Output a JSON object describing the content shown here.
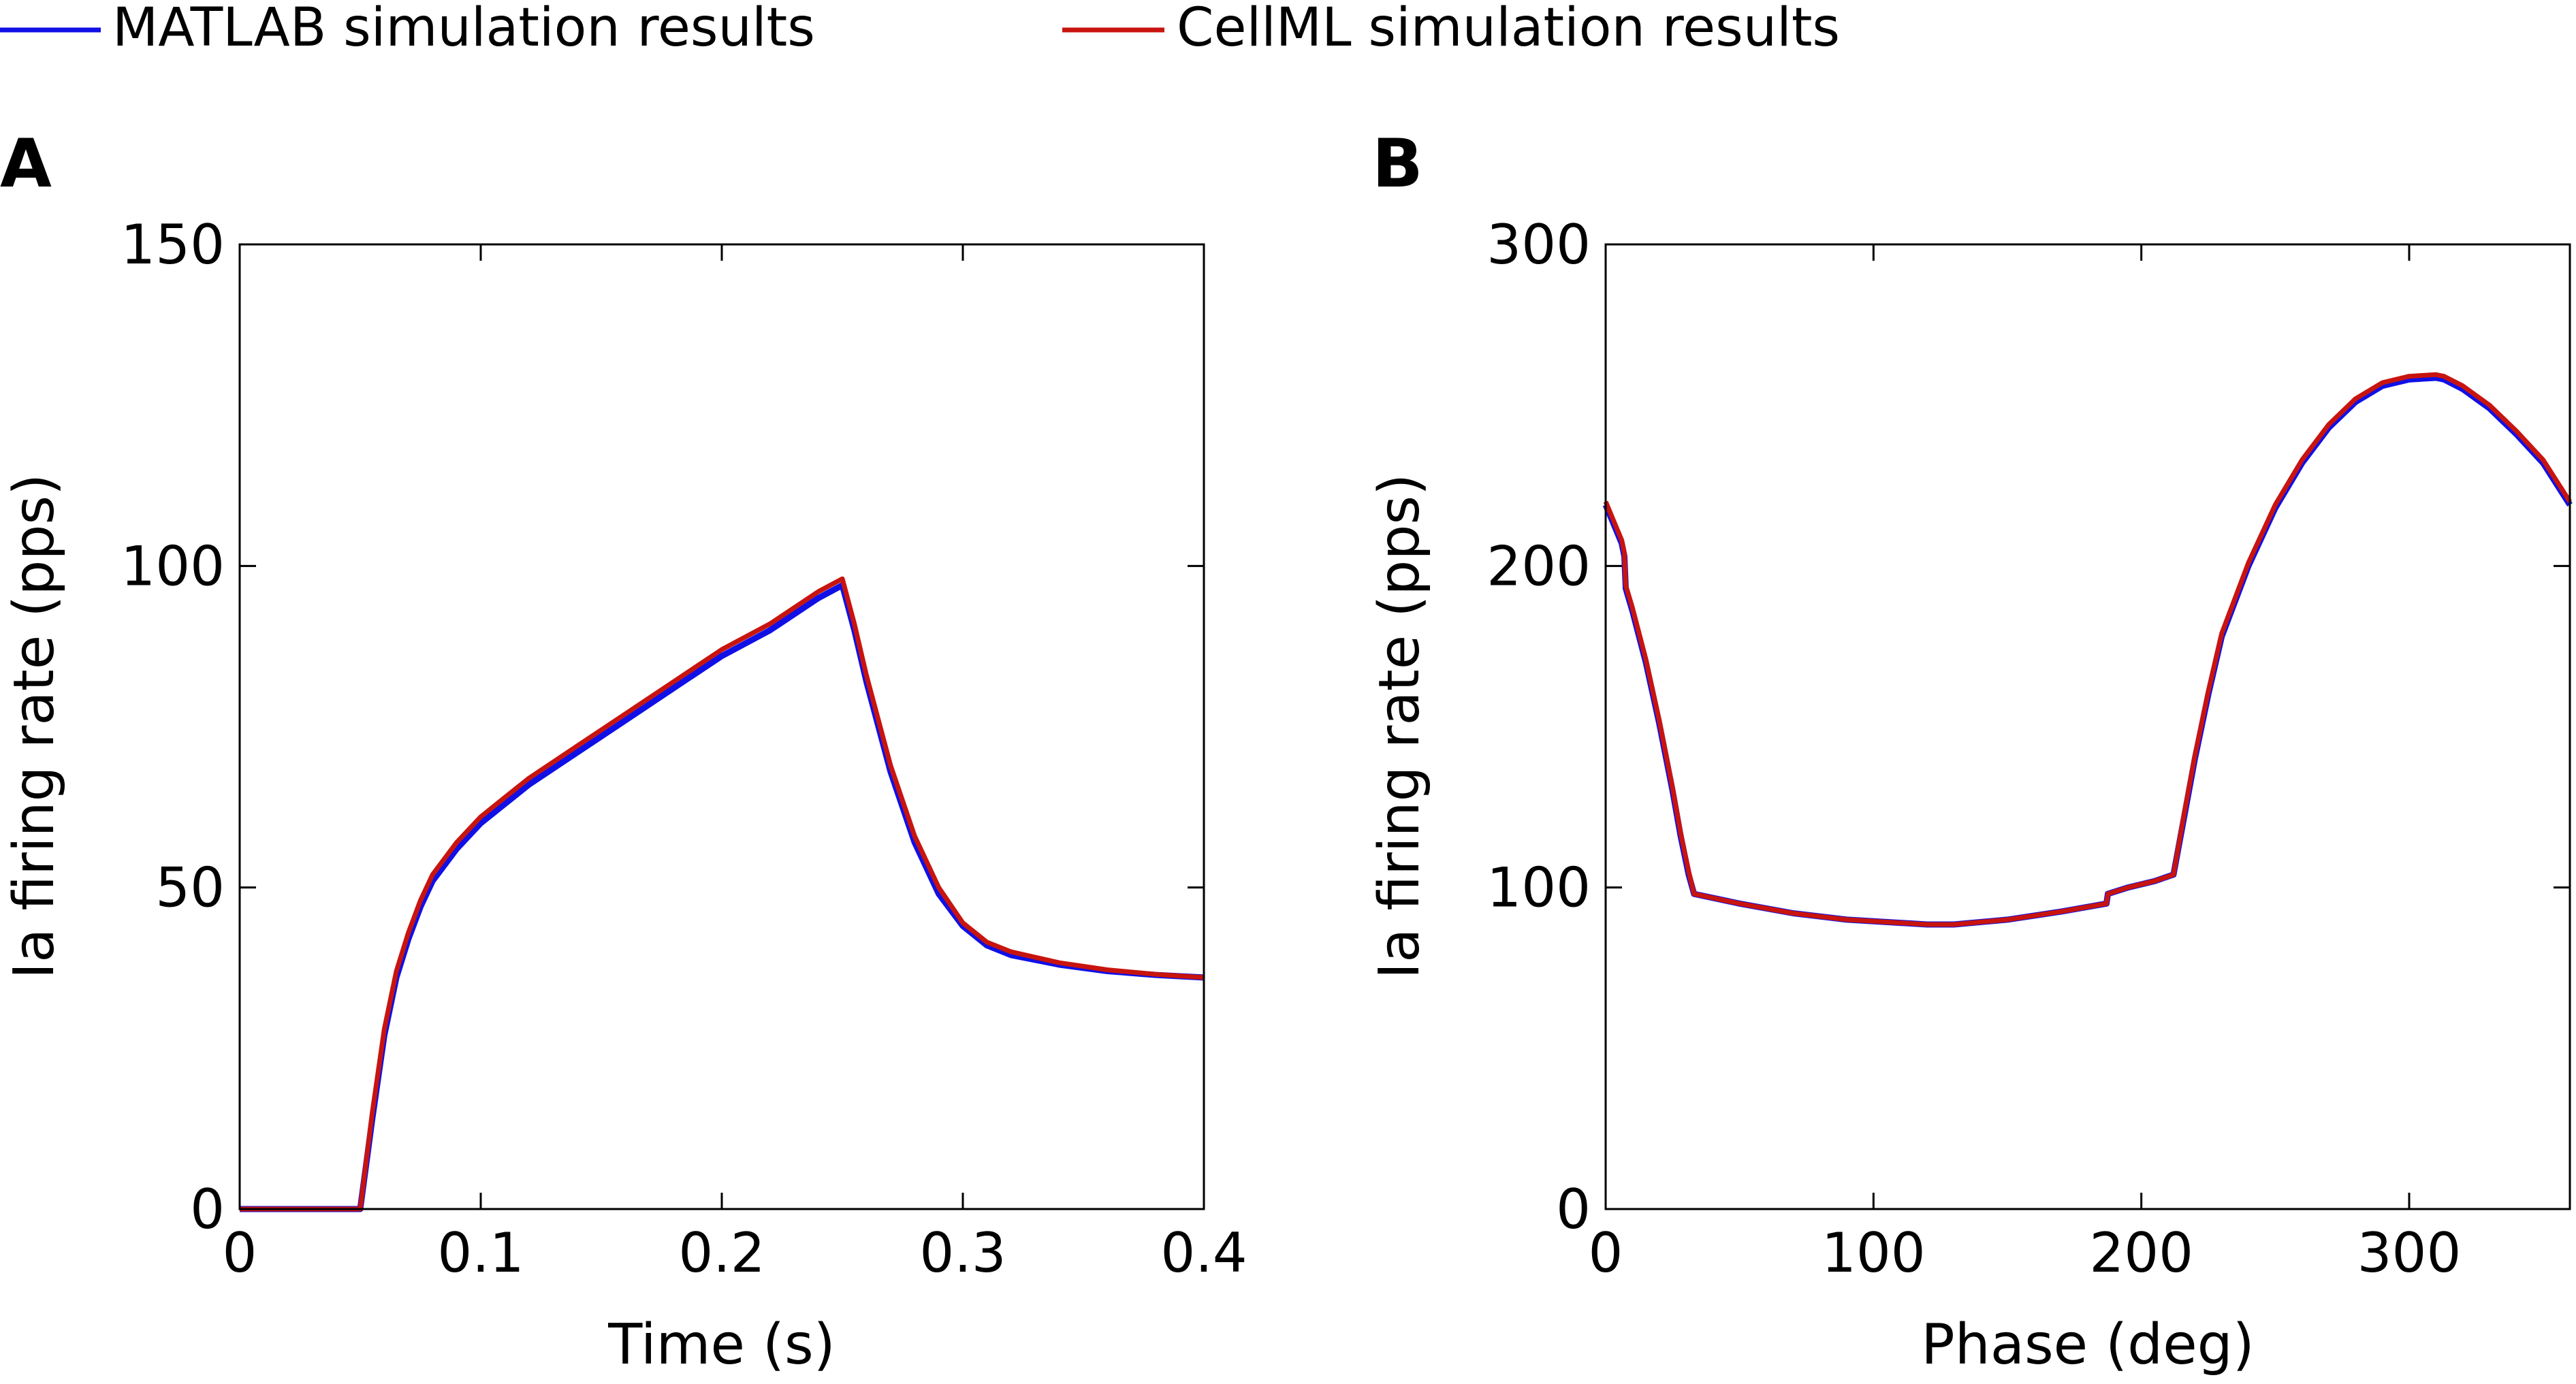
{
  "legend": {
    "items": [
      {
        "label": "MATLAB simulation results",
        "color": "#1010e6"
      },
      {
        "label": "CellML simulation results",
        "color": "#c8140f"
      }
    ]
  },
  "chart_data": [
    {
      "type": "line",
      "panel_label": "A",
      "xlabel": "Time (s)",
      "ylabel": "Ia firing rate (pps)",
      "xlim": [
        0,
        0.4
      ],
      "ylim": [
        0,
        150
      ],
      "xticks": [
        0,
        0.1,
        0.2,
        0.3,
        0.4
      ],
      "xtick_labels": [
        "0",
        "0.1",
        "0.2",
        "0.3",
        "0.4"
      ],
      "yticks": [
        0,
        50,
        100,
        150
      ],
      "ytick_labels": [
        "0",
        "50",
        "100",
        "150"
      ],
      "grid": false,
      "series": [
        {
          "name": "MATLAB simulation results",
          "x": [
            0,
            0.05,
            0.055,
            0.06,
            0.065,
            0.07,
            0.075,
            0.08,
            0.09,
            0.1,
            0.11,
            0.12,
            0.14,
            0.16,
            0.18,
            0.2,
            0.22,
            0.24,
            0.25,
            0.255,
            0.26,
            0.27,
            0.28,
            0.29,
            0.3,
            0.31,
            0.32,
            0.34,
            0.36,
            0.38,
            0.4
          ],
          "y": [
            0,
            0,
            14,
            27,
            36,
            42,
            47,
            51,
            56,
            60,
            63,
            66,
            71,
            76,
            81,
            86,
            90,
            95,
            97,
            90,
            82,
            68,
            57,
            49,
            44,
            41,
            39.5,
            38,
            37,
            36.4,
            36
          ]
        },
        {
          "name": "CellML simulation results",
          "x": [
            0,
            0.05,
            0.055,
            0.06,
            0.065,
            0.07,
            0.075,
            0.08,
            0.09,
            0.1,
            0.11,
            0.12,
            0.14,
            0.16,
            0.18,
            0.2,
            0.22,
            0.24,
            0.25,
            0.255,
            0.26,
            0.27,
            0.28,
            0.29,
            0.3,
            0.31,
            0.32,
            0.34,
            0.36,
            0.38,
            0.4
          ],
          "y": [
            0,
            0,
            15,
            28,
            37,
            43,
            48,
            52,
            57,
            61,
            64,
            67,
            72,
            77,
            82,
            87,
            91,
            96,
            98,
            91,
            83,
            69,
            58,
            50,
            44.5,
            41.5,
            40,
            38.3,
            37.2,
            36.5,
            36
          ]
        }
      ]
    },
    {
      "type": "line",
      "panel_label": "B",
      "xlabel": "Phase (deg)",
      "ylabel": "Ia firing rate (pps)",
      "xlim": [
        0,
        360
      ],
      "ylim": [
        0,
        300
      ],
      "xticks": [
        0,
        100,
        200,
        300
      ],
      "xtick_labels": [
        "0",
        "100",
        "200",
        "300"
      ],
      "yticks": [
        0,
        100,
        200,
        300
      ],
      "ytick_labels": [
        "0",
        "100",
        "200",
        "300"
      ],
      "grid": false,
      "series": [
        {
          "name": "MATLAB simulation results",
          "x": [
            0,
            3,
            6,
            7,
            7.5,
            10,
            15,
            20,
            25,
            28,
            31,
            33,
            50,
            70,
            90,
            110,
            120,
            130,
            150,
            170,
            187,
            187.5,
            195,
            205,
            212,
            216,
            220,
            225,
            230,
            240,
            250,
            260,
            270,
            280,
            290,
            300,
            310,
            313,
            320,
            330,
            340,
            350,
            360
          ],
          "y": [
            219,
            213,
            207,
            203,
            193,
            186,
            170,
            151,
            130,
            116,
            104,
            98,
            95,
            92,
            90,
            89,
            88.5,
            88.5,
            90,
            92.5,
            95,
            98,
            100,
            102,
            104,
            122,
            140,
            160,
            178,
            200,
            218,
            232,
            243,
            251,
            256,
            258,
            258.5,
            258,
            255,
            249,
            241,
            232,
            219
          ]
        },
        {
          "name": "CellML simulation results",
          "x": [
            0,
            3,
            6,
            7,
            7.5,
            10,
            15,
            20,
            25,
            28,
            31,
            33,
            50,
            70,
            90,
            110,
            120,
            130,
            150,
            170,
            187,
            187.5,
            195,
            205,
            212,
            216,
            220,
            225,
            230,
            240,
            250,
            260,
            270,
            280,
            290,
            300,
            310,
            313,
            320,
            330,
            340,
            350,
            360
          ],
          "y": [
            220,
            214,
            208,
            204,
            194,
            187,
            171,
            152,
            131,
            117,
            105,
            98,
            95,
            92,
            90,
            89,
            88.5,
            88.5,
            90,
            92.5,
            95,
            98,
            100,
            102,
            104,
            123,
            141,
            161,
            179,
            201,
            219,
            233,
            244,
            252,
            257,
            259,
            259.5,
            259,
            256,
            250,
            242,
            233,
            220
          ]
        }
      ]
    }
  ]
}
